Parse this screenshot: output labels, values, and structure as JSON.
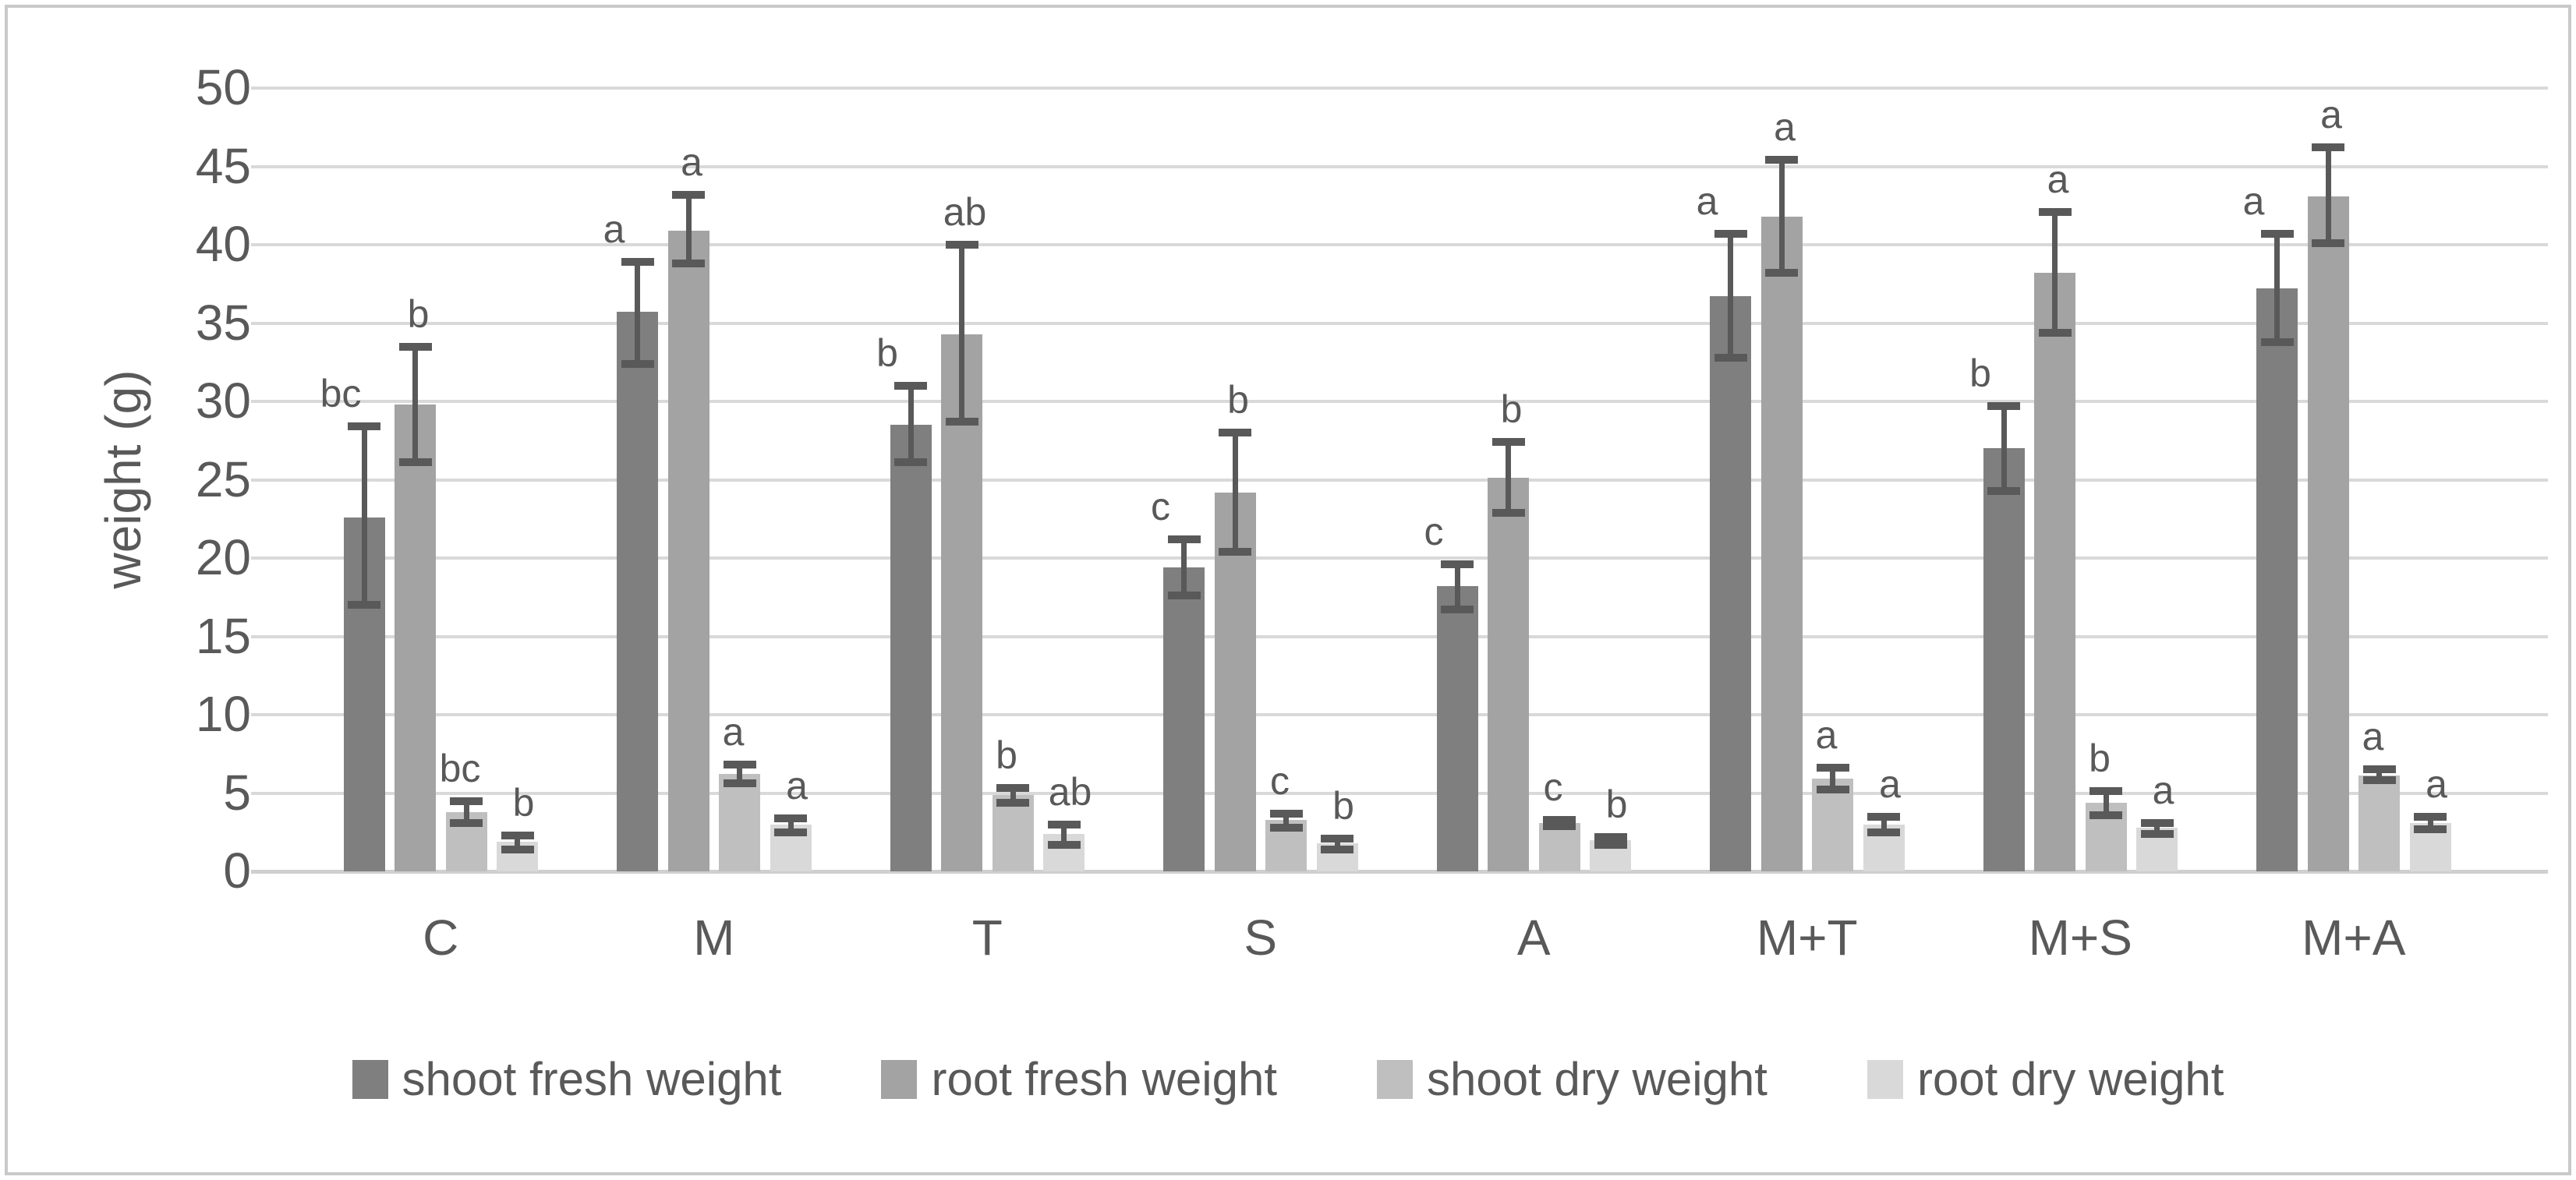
{
  "figure": {
    "background": "#ffffff",
    "border_color": "#c9c9c9",
    "text_color": "#595959",
    "gridline_color": "#d9d9d9",
    "error_bar_color": "#595959"
  },
  "chart_data": {
    "type": "bar",
    "title": "",
    "xlabel": "",
    "ylabel": "weight (g)",
    "ylim": [
      0,
      50
    ],
    "ytick_step": 5,
    "grid": true,
    "legend_position": "bottom",
    "categories": [
      "C",
      "M",
      "T",
      "S",
      "A",
      "M+T",
      "M+S",
      "M+A"
    ],
    "series": [
      {
        "name": "shoot fresh weight",
        "color": "#7f7f7f",
        "values": [
          22.6,
          35.7,
          28.5,
          19.4,
          18.2,
          36.7,
          27.0,
          37.2
        ],
        "error_low": [
          17.0,
          32.4,
          26.1,
          17.6,
          16.7,
          32.8,
          24.3,
          33.8
        ],
        "error_high": [
          28.4,
          38.9,
          31.0,
          21.2,
          19.6,
          40.7,
          29.7,
          40.7
        ],
        "sig_letters": [
          "bc",
          "a",
          "b",
          "c",
          "c",
          "a",
          "b",
          "a"
        ]
      },
      {
        "name": "root fresh weight",
        "color": "#a3a3a3",
        "values": [
          29.8,
          40.9,
          34.3,
          24.2,
          25.1,
          41.8,
          38.2,
          43.1
        ],
        "error_low": [
          26.1,
          38.8,
          28.7,
          20.4,
          22.9,
          38.2,
          34.4,
          40.1
        ],
        "error_high": [
          33.5,
          43.2,
          40.0,
          28.0,
          27.4,
          45.4,
          42.1,
          46.2
        ],
        "sig_letters": [
          "b",
          "a",
          "ab",
          "b",
          "b",
          "a",
          "a",
          "a"
        ]
      },
      {
        "name": "shoot dry weight",
        "color": "#bfbfbf",
        "values": [
          3.8,
          6.2,
          4.9,
          3.3,
          3.1,
          5.9,
          4.4,
          6.1
        ],
        "error_low": [
          3.1,
          5.6,
          4.4,
          2.8,
          2.9,
          5.2,
          3.6,
          5.8
        ],
        "error_high": [
          4.5,
          6.8,
          5.3,
          3.7,
          3.3,
          6.6,
          5.1,
          6.5
        ],
        "sig_letters": [
          "bc",
          "a",
          "b",
          "c",
          "c",
          "a",
          "b",
          "a"
        ]
      },
      {
        "name": "root dry weight",
        "color": "#d9d9d9",
        "values": [
          1.9,
          3.0,
          2.4,
          1.8,
          2.0,
          3.0,
          2.8,
          3.1
        ],
        "error_low": [
          1.4,
          2.5,
          1.7,
          1.4,
          1.7,
          2.5,
          2.4,
          2.7
        ],
        "error_high": [
          2.3,
          3.4,
          3.0,
          2.1,
          2.2,
          3.5,
          3.1,
          3.5
        ],
        "sig_letters": [
          "b",
          "a",
          "ab",
          "b",
          "b",
          "a",
          "a",
          "a"
        ]
      }
    ]
  }
}
